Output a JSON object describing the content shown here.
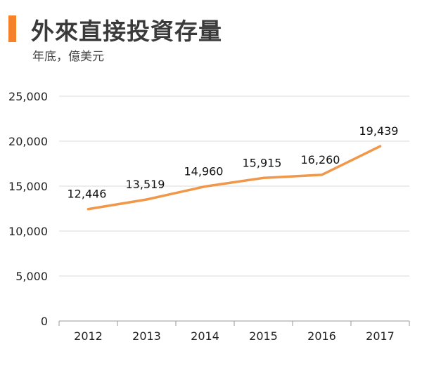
{
  "header": {
    "title": "外來直接投資存量",
    "subtitle": "年底，億美元"
  },
  "colors": {
    "accent": "#F5822A",
    "line": "#F0974A",
    "grid": "#d9d9d9",
    "axis": "#999999"
  },
  "chart_data": {
    "type": "line",
    "title": "外來直接投資存量",
    "subtitle": "年底，億美元",
    "categories": [
      "2012",
      "2013",
      "2014",
      "2015",
      "2016",
      "2017"
    ],
    "values": [
      12446,
      13519,
      14960,
      15915,
      16260,
      19439
    ],
    "data_labels": [
      "12,446",
      "13,519",
      "14,960",
      "15,915",
      "16,260",
      "19,439"
    ],
    "yticks": [
      0,
      5000,
      10000,
      15000,
      20000,
      25000
    ],
    "ytick_labels": [
      "0",
      "5,000",
      "10,000",
      "15,000",
      "20,000",
      "25,000"
    ],
    "ylim": [
      0,
      25000
    ],
    "grid": true,
    "legend": "none"
  }
}
